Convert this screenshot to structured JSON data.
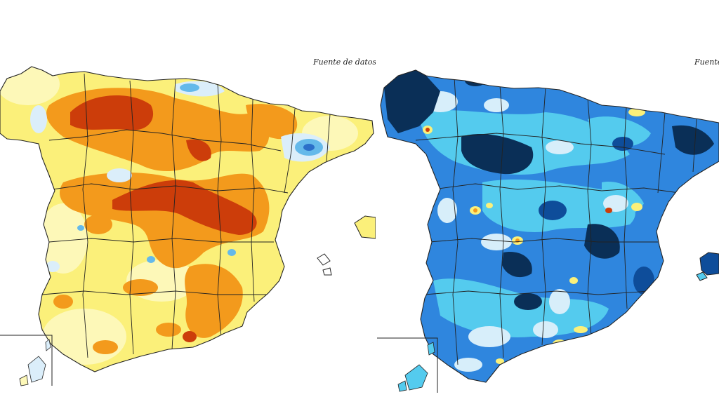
{
  "maps": [
    {
      "id": "left",
      "source_credit": "Fuente de datos: A",
      "palette": "warm",
      "colors": {
        "base": "#fbf07a",
        "light": "#fdf8b8",
        "orange": "#f39a1c",
        "dark": "#cc3d0a",
        "pale_blue": "#dbeefa",
        "blue": "#64b9ea",
        "deep_blue": "#2b6fc9",
        "ocean": "#ffffff",
        "border": "#222222"
      }
    },
    {
      "id": "right",
      "source_credit": "Fuente",
      "palette": "cool",
      "colors": {
        "base": "#2f86de",
        "light_cyan": "#54cbee",
        "pale": "#d7eefa",
        "dark": "#0a2f57",
        "navy": "#0e4d9a",
        "yellow": "#fbf07a",
        "orange": "#f39a1c",
        "red": "#cc3d0a",
        "ocean": "#ffffff",
        "border": "#222222"
      }
    }
  ]
}
